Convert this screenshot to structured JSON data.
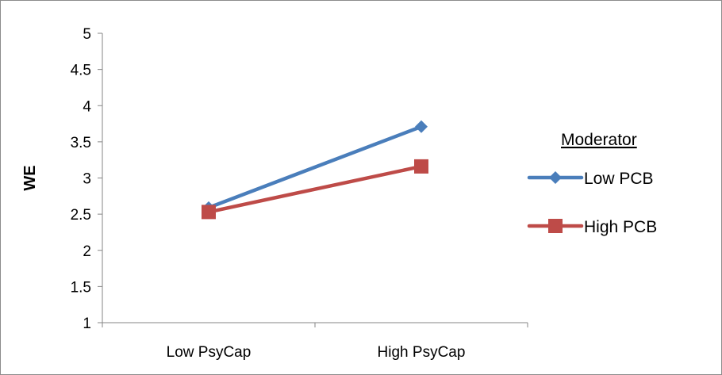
{
  "chart_data": {
    "type": "line",
    "title": "",
    "xlabel": "",
    "ylabel": "WE",
    "categories": [
      "Low PsyCap",
      "High PsyCap"
    ],
    "ylim": [
      1,
      5
    ],
    "yticks": [
      "1",
      "1.5",
      "2",
      "2.5",
      "3",
      "3.5",
      "4",
      "4.5",
      "5"
    ],
    "grid": false,
    "legend": {
      "title": "Moderator",
      "placement": "right"
    },
    "series": [
      {
        "name": "Low PCB",
        "values": [
          2.59,
          3.71
        ],
        "color": "#4a7ebb",
        "marker": "diamond"
      },
      {
        "name": "High PCB",
        "values": [
          2.53,
          3.16
        ],
        "color": "#be4b48",
        "marker": "square"
      }
    ]
  }
}
